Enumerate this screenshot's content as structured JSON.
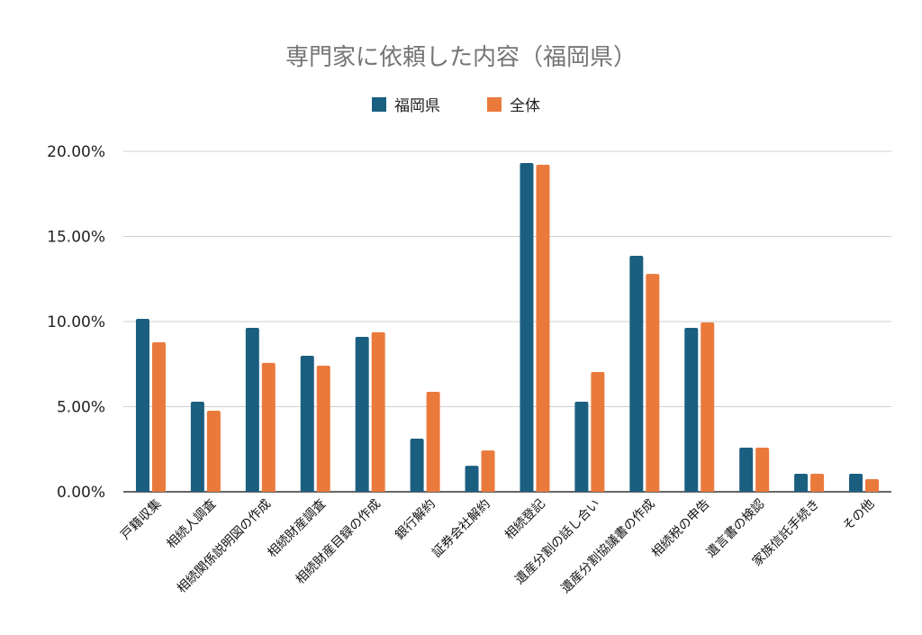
{
  "chart_data": {
    "type": "bar",
    "title": "専門家に依頼した内容（福岡県）",
    "xlabel": "",
    "ylabel": "",
    "ylim": [
      0,
      20
    ],
    "yticks": [
      "0.00%",
      "5.00%",
      "10.00%",
      "15.00%",
      "20.00%"
    ],
    "ytick_values": [
      0,
      5,
      10,
      15,
      20
    ],
    "grid": true,
    "legend_position": "top-center",
    "categories": [
      "戸籍収集",
      "相続人調査",
      "相続関係説明図の作成",
      "相続財産調査",
      "相続財産目録の作成",
      "銀行解約",
      "証券会社解約",
      "相続登記",
      "遺産分割の話し合い",
      "遺産分割協議書の作成",
      "相続税の申告",
      "遺言書の検認",
      "家族信託手続き",
      "その他"
    ],
    "series": [
      {
        "name": "福岡県",
        "color": "#1b5f80",
        "values": [
          10.16,
          5.29,
          9.63,
          7.99,
          9.1,
          3.12,
          1.53,
          19.31,
          5.29,
          13.86,
          9.63,
          2.59,
          1.06,
          1.06
        ]
      },
      {
        "name": "全体",
        "color": "#ea7a3c",
        "values": [
          8.78,
          4.76,
          7.57,
          7.41,
          9.37,
          5.87,
          2.43,
          19.21,
          7.04,
          12.8,
          9.95,
          2.59,
          1.06,
          0.74
        ]
      }
    ]
  }
}
